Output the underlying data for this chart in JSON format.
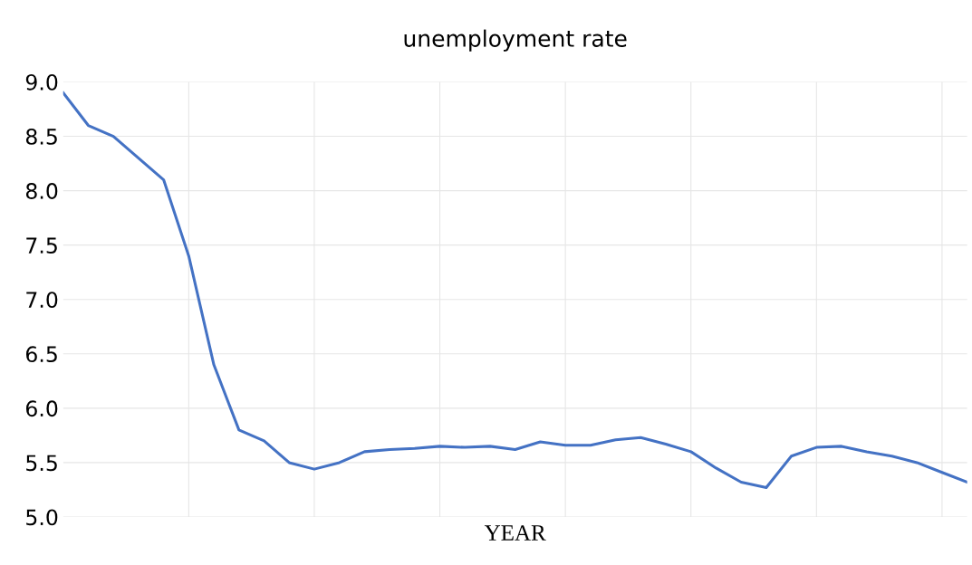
{
  "chart_data": {
    "type": "line",
    "title": "unemployment rate",
    "xlabel": "YEAR",
    "categories": [
      null,
      null,
      null,
      null,
      null,
      null,
      null,
      null,
      null,
      null,
      null,
      null,
      null,
      null,
      null,
      null,
      null,
      null,
      null,
      null,
      null,
      null,
      null,
      null,
      null,
      null,
      null,
      null,
      null,
      null,
      null,
      null,
      null,
      null,
      null,
      null,
      null
    ],
    "series": [
      {
        "color": "#4472c4",
        "values": [
          8.9,
          8.6,
          8.5,
          8.3,
          8.1,
          7.4,
          6.4,
          5.8,
          5.7,
          5.5,
          5.44,
          5.5,
          5.6,
          5.62,
          5.63,
          5.65,
          5.64,
          5.65,
          5.62,
          5.69,
          5.66,
          5.66,
          5.71,
          5.73,
          5.67,
          5.6,
          5.45,
          5.32,
          5.27,
          5.56,
          5.64,
          5.65,
          5.6,
          5.56,
          5.5,
          5.41,
          5.32
        ]
      }
    ],
    "ylim": [
      5.0,
      9.0
    ],
    "yticks": [
      {
        "value": 5.0,
        "label": "5.0"
      },
      {
        "value": 5.5,
        "label": "5.5"
      },
      {
        "value": 6.0,
        "label": "6.0"
      },
      {
        "value": 6.5,
        "label": "6.5"
      },
      {
        "value": 7.0,
        "label": "7.0"
      },
      {
        "value": 7.5,
        "label": "7.5"
      },
      {
        "value": 8.0,
        "label": "8.0"
      },
      {
        "value": 8.5,
        "label": "8.5"
      },
      {
        "value": 9.0,
        "label": "9.0"
      }
    ],
    "grid": true,
    "tick_labels": "y",
    "marker": "none",
    "line_style": "solid"
  }
}
